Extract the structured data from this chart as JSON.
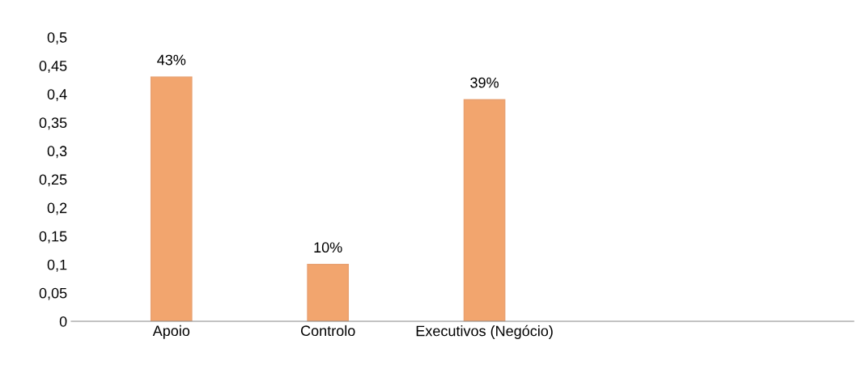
{
  "chart_data": {
    "type": "bar",
    "categories": [
      "Apoio",
      "Controlo",
      "Executivos (Negócio)",
      null,
      null
    ],
    "values": [
      0.43,
      0.1,
      0.39,
      null,
      null
    ],
    "value_labels": [
      "43%",
      "10%",
      "39%",
      null,
      null
    ],
    "color": "#f2a56e",
    "ylim": [
      0,
      0.5
    ],
    "yticks": [
      0,
      {
        "value": 0.05,
        "label": "0,05"
      },
      {
        "value": 0.1,
        "label": "0,1"
      },
      {
        "value": 0.15,
        "label": "0,15"
      },
      {
        "value": 0.2,
        "label": "0,2"
      },
      {
        "value": 0.25,
        "label": "0,25"
      },
      {
        "value": 0.3,
        "label": "0,3"
      },
      {
        "value": 0.35,
        "label": "0,35"
      },
      {
        "value": 0.4,
        "label": "0,4"
      },
      {
        "value": 0.45,
        "label": "0,45"
      },
      {
        "value": 0.5,
        "label": "0,5"
      }
    ],
    "grid": false
  }
}
